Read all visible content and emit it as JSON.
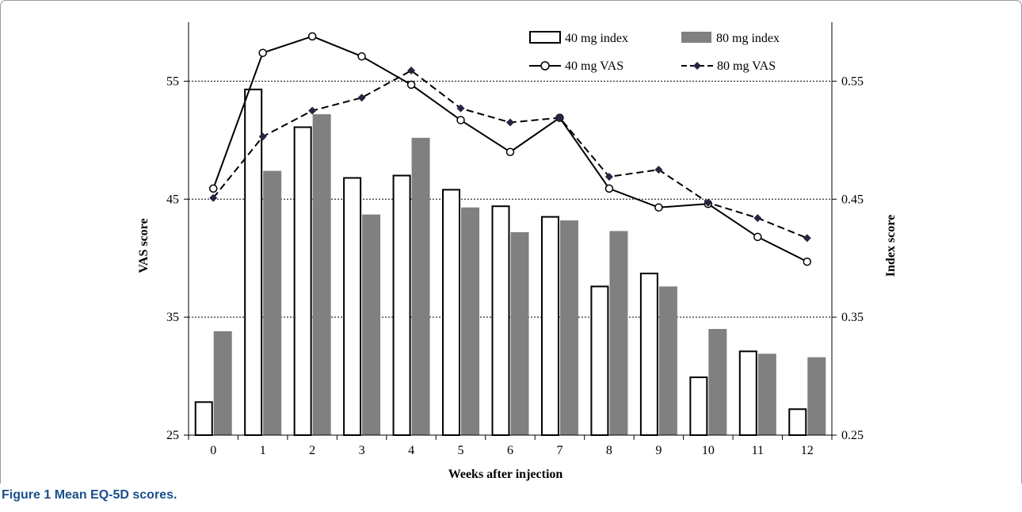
{
  "figure": {
    "label": "Figure 1",
    "caption": "Mean EQ-5D scores."
  },
  "colors": {
    "frame": "#9a9a9a",
    "axis": "#000000",
    "bar_80": "#808080",
    "bar_40_fill": "#ffffff",
    "bar_40_stroke": "#000000",
    "line_80_marker": "#2b2342",
    "grid": "#000000",
    "caption": "#1a4f8c"
  },
  "chart_data": {
    "type": "bar+line",
    "xlabel": "Weeks after injection",
    "ylabel_left": "VAS score",
    "ylabel_right": "Index score",
    "categories": [
      "0",
      "1",
      "2",
      "3",
      "4",
      "5",
      "6",
      "7",
      "8",
      "9",
      "10",
      "11",
      "12"
    ],
    "ylim_left": [
      25,
      60
    ],
    "yticks_left": [
      "25",
      "35",
      "45",
      "55"
    ],
    "ylim_right": [
      0.25,
      0.6
    ],
    "yticks_right": [
      "0.25",
      "0.35",
      "0.45",
      "0.55"
    ],
    "grid": "horizontal dotted at 35, 45, 55",
    "legend_placement": "top-right",
    "bar_series": [
      {
        "name": "40 mg index",
        "axis": "right",
        "style": "white",
        "values": [
          0.278,
          0.543,
          0.511,
          0.468,
          0.47,
          0.458,
          0.444,
          0.435,
          0.376,
          0.387,
          0.299,
          0.321,
          0.272
        ]
      },
      {
        "name": "80 mg index",
        "axis": "right",
        "style": "gray",
        "values": [
          0.338,
          0.474,
          0.522,
          0.437,
          0.502,
          0.443,
          0.422,
          0.432,
          0.423,
          0.376,
          0.34,
          0.319,
          0.316
        ]
      }
    ],
    "line_series": [
      {
        "name": "40 mg VAS",
        "axis": "left",
        "style": "solid-circle",
        "values": [
          45.9,
          57.4,
          58.8,
          57.1,
          54.7,
          51.7,
          49.0,
          51.9,
          45.9,
          44.3,
          44.6,
          41.8,
          39.7
        ]
      },
      {
        "name": "80 mg VAS",
        "axis": "left",
        "style": "dashed-diamond",
        "values": [
          45.1,
          50.3,
          52.5,
          53.6,
          55.9,
          52.7,
          51.5,
          51.9,
          46.9,
          47.5,
          44.7,
          43.4,
          41.7
        ]
      }
    ]
  }
}
